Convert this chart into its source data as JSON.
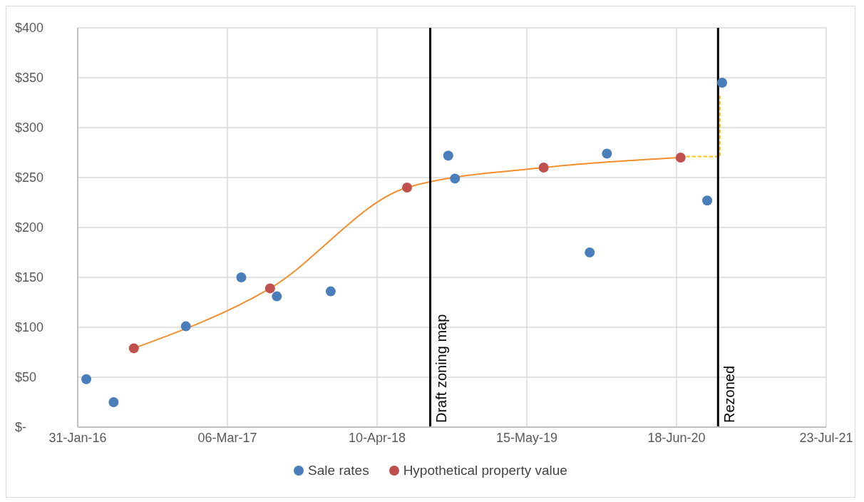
{
  "chart_data": {
    "type": "scatter",
    "xlim": [
      "2016-01-31",
      "2021-07-23"
    ],
    "xticks": [
      {
        "value": "2016-01-31",
        "label": "31-Jan-16"
      },
      {
        "value": "2017-03-06",
        "label": "06-Mar-17"
      },
      {
        "value": "2018-04-10",
        "label": "10-Apr-18"
      },
      {
        "value": "2019-05-15",
        "label": "15-May-19"
      },
      {
        "value": "2020-06-18",
        "label": "18-Jun-20"
      },
      {
        "value": "2021-07-23",
        "label": "23-Jul-21"
      }
    ],
    "ylim": [
      0,
      400
    ],
    "yticks": [
      {
        "value": 0,
        "label": "$-"
      },
      {
        "value": 50,
        "label": "$50"
      },
      {
        "value": 100,
        "label": "$100"
      },
      {
        "value": 150,
        "label": "$150"
      },
      {
        "value": 200,
        "label": "$200"
      },
      {
        "value": 250,
        "label": "$250"
      },
      {
        "value": 300,
        "label": "$300"
      },
      {
        "value": 350,
        "label": "$350"
      },
      {
        "value": 400,
        "label": "$400"
      }
    ],
    "grid": true,
    "legend": "bottom",
    "marker": "circle",
    "series": [
      {
        "type": "line",
        "color": "#f28e2b",
        "marker": "none",
        "line_style": "solid",
        "x": [
          "2016-06-29",
          "2017-06-28",
          "2018-06-29",
          "2019-06-29",
          "2020-06-29"
        ],
        "values": [
          79,
          139,
          240,
          260,
          270
        ]
      },
      {
        "type": "line",
        "color": "#ffc000",
        "marker": "none",
        "line_style": "dashed",
        "x": [
          "2020-06-29",
          "2020-10-12",
          "2020-10-12"
        ],
        "values": [
          271,
          271,
          332
        ]
      },
      {
        "name": "Sale rates",
        "color": "#4a7ebb",
        "x": [
          "2016-02-23",
          "2016-05-06",
          "2016-11-15",
          "2017-04-12",
          "2017-07-16",
          "2017-12-07",
          "2018-10-17",
          "2018-11-04",
          "2019-10-30",
          "2019-12-15",
          "2020-09-08",
          "2020-10-18"
        ],
        "values": [
          48,
          25,
          101,
          150,
          131,
          136,
          272,
          249,
          175,
          274,
          227,
          345
        ]
      },
      {
        "name": "Hypothetical property value",
        "color": "#c0504d",
        "x": [
          "2016-06-29",
          "2017-06-28",
          "2018-06-29",
          "2019-06-29",
          "2020-06-29"
        ],
        "values": [
          79,
          139,
          240,
          260,
          270
        ]
      }
    ],
    "ref_lines": [
      {
        "axis": "x",
        "value": "2018-08-30",
        "label": "Draft zoning map",
        "color": "#000000"
      },
      {
        "axis": "x",
        "value": "2020-10-07",
        "label": "Rezoned",
        "color": "#000000"
      }
    ]
  }
}
